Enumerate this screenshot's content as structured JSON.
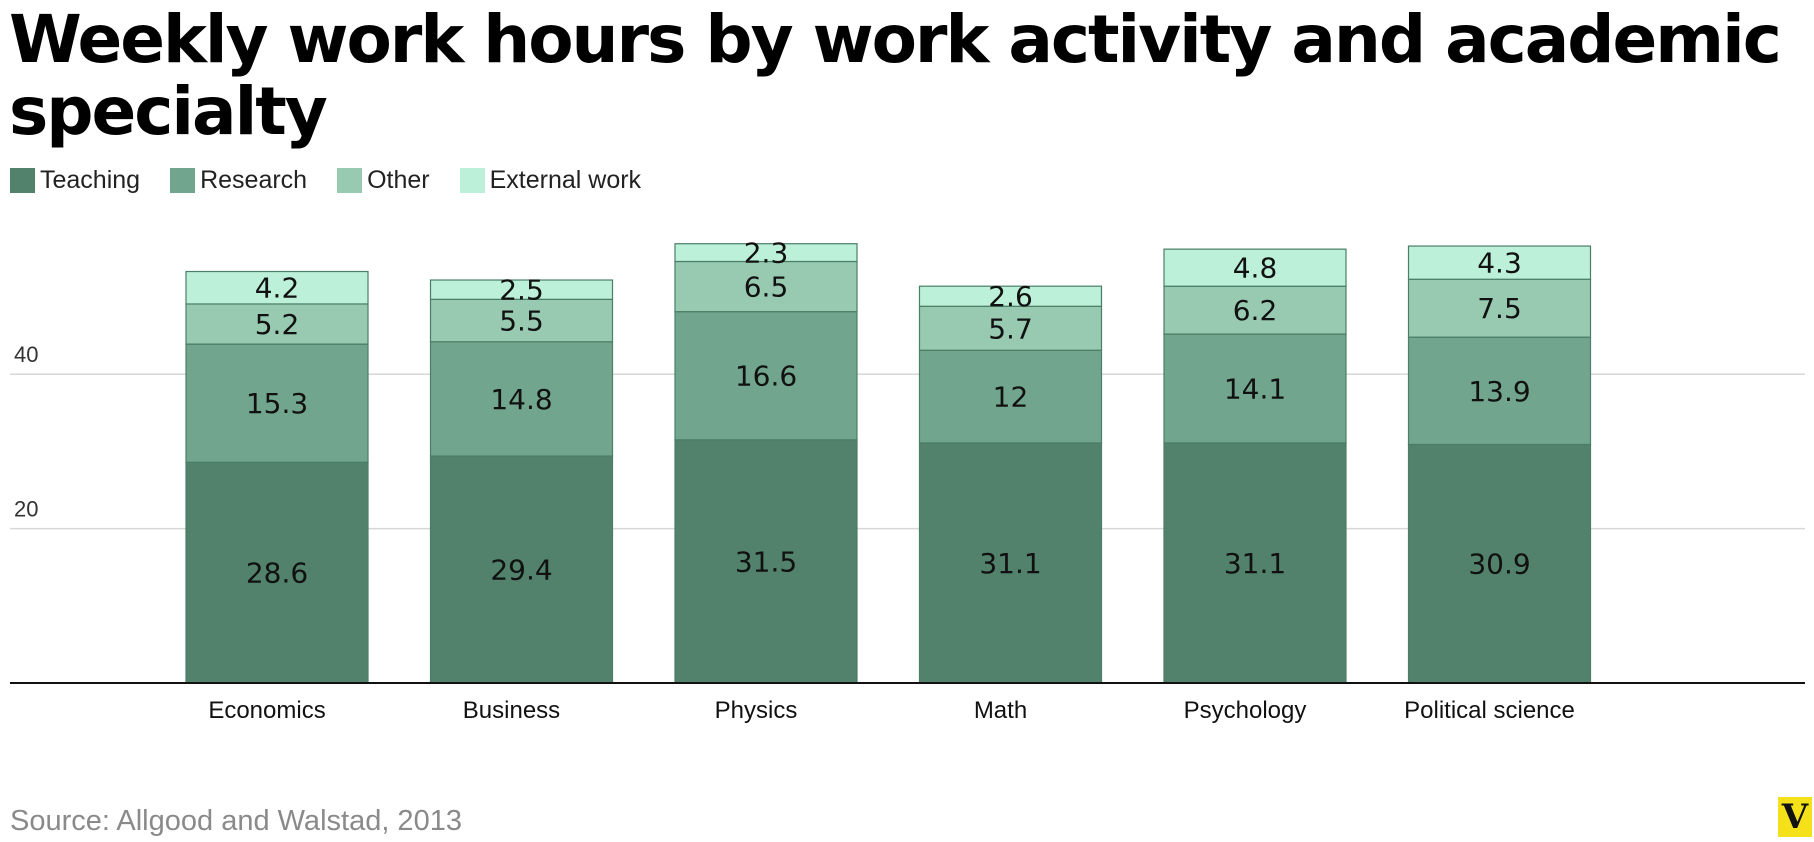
{
  "chart_data": {
    "type": "bar",
    "stacked": true,
    "title": "Weekly work hours by work activity and academic specialty",
    "categories": [
      "Economics",
      "Business",
      "Physics",
      "Math",
      "Psychology",
      "Political science"
    ],
    "series": [
      {
        "name": "Teaching",
        "color": "#52816c",
        "values": [
          28.6,
          29.4,
          31.5,
          31.1,
          31.1,
          30.9
        ]
      },
      {
        "name": "Research",
        "color": "#72a58d",
        "values": [
          15.3,
          14.8,
          16.6,
          12,
          14.1,
          13.9
        ]
      },
      {
        "name": "Other",
        "color": "#98cab2",
        "values": [
          5.2,
          5.5,
          6.5,
          5.7,
          6.2,
          7.5
        ]
      },
      {
        "name": "External work",
        "color": "#bcf0d9",
        "values": [
          4.2,
          2.5,
          2.3,
          2.6,
          4.8,
          4.3
        ]
      }
    ],
    "yticks": [
      "20",
      "40"
    ],
    "ylim": [
      0,
      60
    ],
    "grid": true,
    "legend": "top-left",
    "source": "Source: Allgood and Walstad, 2013"
  },
  "logo_text": "V"
}
